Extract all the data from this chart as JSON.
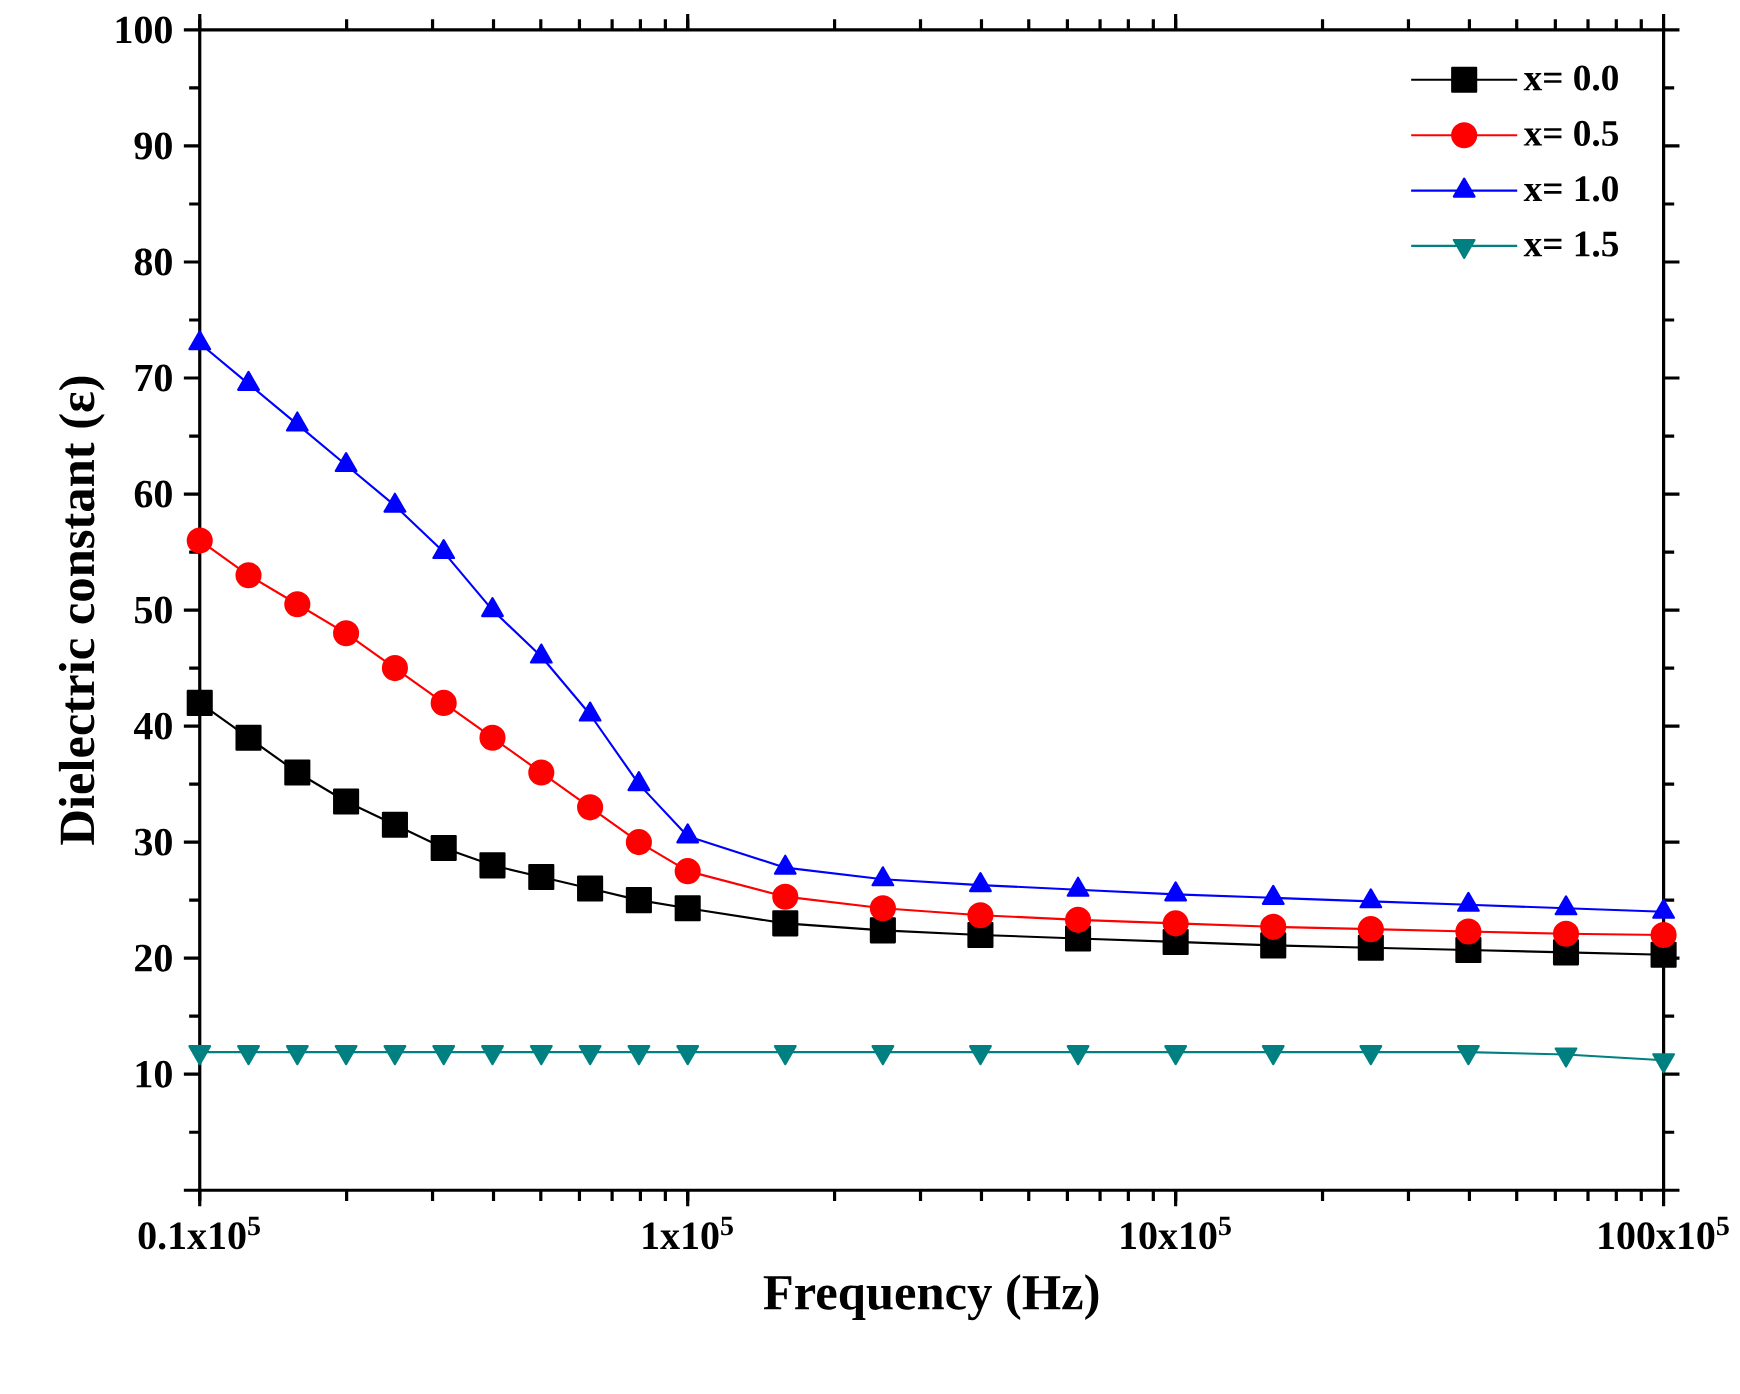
{
  "chart_data": {
    "type": "line",
    "xlabel": "Frequency (Hz)",
    "ylabel": "Dielectric constant (ε)",
    "log": "x",
    "xlim": [
      10000,
      10000000
    ],
    "ylim": [
      0,
      100
    ],
    "xticks": [
      {
        "value": 10000,
        "label": "0.1x10$^{5}$"
      },
      {
        "value": 100000,
        "label": "1x10$^{5}$"
      },
      {
        "value": 1000000,
        "label": "10x10$^{5}$"
      },
      {
        "value": 10000000,
        "label": "100x10$^{5}$"
      }
    ],
    "yticks": [
      {
        "value": 0,
        "label": null
      },
      10,
      20,
      30,
      40,
      50,
      60,
      70,
      80,
      90,
      100
    ],
    "grid": false,
    "legend": "top right",
    "line_style": "solid",
    "x": [
      10000,
      12589,
      15849,
      19953,
      25119,
      31623,
      39811,
      50119,
      63096,
      79433,
      100000,
      158489,
      251189,
      398107,
      630957,
      1000000,
      1584893,
      2511886,
      3981072,
      6309573,
      10000000
    ],
    "series": [
      {
        "name": "x= 0.0",
        "color": "#000000",
        "marker": "square",
        "values": [
          42,
          39,
          36,
          33.5,
          31.5,
          29.5,
          28,
          27,
          26,
          25,
          24.3,
          23,
          22.4,
          22,
          21.7,
          21.4,
          21.1,
          20.9,
          20.7,
          20.5,
          20.3
        ]
      },
      {
        "name": "x= 0.5",
        "color": "#ff0000",
        "marker": "circle",
        "values": [
          56,
          53,
          50.5,
          48,
          45,
          42,
          39,
          36,
          33,
          30,
          27.5,
          25.3,
          24.3,
          23.7,
          23.3,
          23,
          22.7,
          22.5,
          22.3,
          22.1,
          22
        ]
      },
      {
        "name": "x= 1.0",
        "color": "#0000ff",
        "marker": "triangle",
        "values": [
          73,
          69.5,
          66,
          62.5,
          59,
          55,
          50,
          46,
          41,
          35,
          30.5,
          27.8,
          26.8,
          26.3,
          25.9,
          25.5,
          25.2,
          24.9,
          24.6,
          24.3,
          24
        ]
      },
      {
        "name": "x= 1.5",
        "color": "#008080",
        "marker": "triangle-down",
        "values": [
          11.9,
          11.9,
          11.9,
          11.9,
          11.9,
          11.9,
          11.9,
          11.9,
          11.9,
          11.9,
          11.9,
          11.9,
          11.9,
          11.9,
          11.9,
          11.9,
          11.9,
          11.9,
          11.9,
          11.7,
          11.2
        ]
      }
    ]
  }
}
